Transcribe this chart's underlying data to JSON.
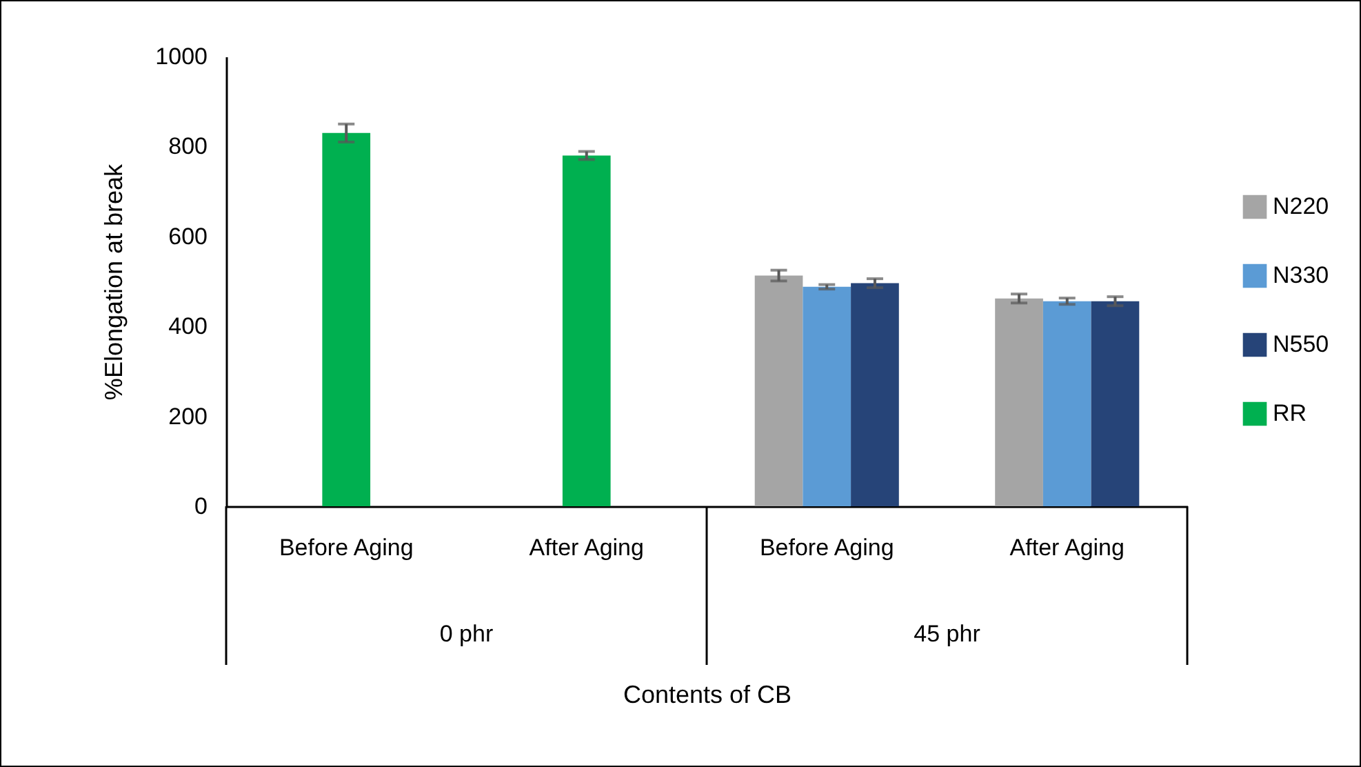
{
  "chart_data": {
    "type": "bar",
    "xlabel": "Contents of CB",
    "ylabel": "%Elongation at break",
    "categories": [
      "Before Aging",
      "After Aging",
      "Before Aging",
      "After Aging"
    ],
    "annotations": [
      "0 phr",
      "45 phr"
    ],
    "series": [
      {
        "name": "N220",
        "color": "#a5a5a5",
        "values": [
          null,
          null,
          513,
          462
        ],
        "errors": [
          null,
          null,
          12,
          10
        ]
      },
      {
        "name": "N330",
        "color": "#5b9bd5",
        "values": [
          null,
          null,
          488,
          456
        ],
        "errors": [
          null,
          null,
          5,
          7
        ]
      },
      {
        "name": "N550",
        "color": "#264478",
        "values": [
          null,
          null,
          496,
          456
        ],
        "errors": [
          null,
          null,
          10,
          10
        ]
      },
      {
        "name": "RR",
        "color": "#00b050",
        "values": [
          830,
          780,
          null,
          null
        ],
        "errors": [
          20,
          9,
          null,
          null
        ]
      }
    ],
    "ylim": [
      0,
      1000
    ],
    "yticks": [
      0,
      200,
      400,
      600,
      800,
      1000
    ],
    "grid": false,
    "legend": "right"
  }
}
